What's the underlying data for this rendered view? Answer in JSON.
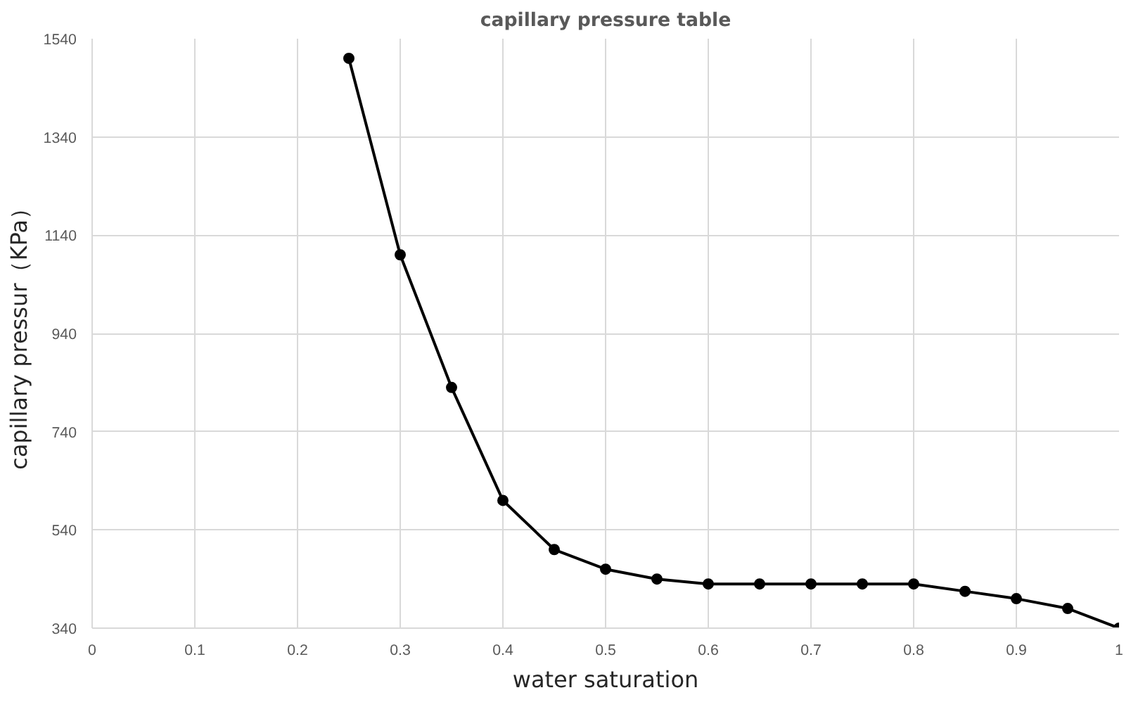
{
  "chart_data": {
    "type": "line",
    "title": "capillary pressure table",
    "xlabel": "water saturation",
    "ylabel": "capillary pressur（KPa）",
    "x": [
      0.25,
      0.3,
      0.35,
      0.4,
      0.45,
      0.5,
      0.55,
      0.6,
      0.65,
      0.7,
      0.75,
      0.8,
      0.85,
      0.9,
      0.95,
      1
    ],
    "series": [
      {
        "color": "#000000",
        "values": [
          1500,
          1100,
          830,
          600,
          500,
          460,
          440,
          430,
          430,
          430,
          430,
          430,
          415,
          400,
          380,
          340
        ]
      }
    ],
    "xlim": [
      0,
      1
    ],
    "xticks": [
      0,
      0.1,
      0.2,
      0.3,
      0.4,
      0.5,
      0.6,
      0.7,
      0.8,
      0.9,
      1
    ],
    "ylim": [
      340,
      1540
    ],
    "yticks": [
      340,
      540,
      740,
      940,
      1140,
      1340,
      1540
    ],
    "grid": true,
    "marker": "circle",
    "line_style": "solid"
  }
}
